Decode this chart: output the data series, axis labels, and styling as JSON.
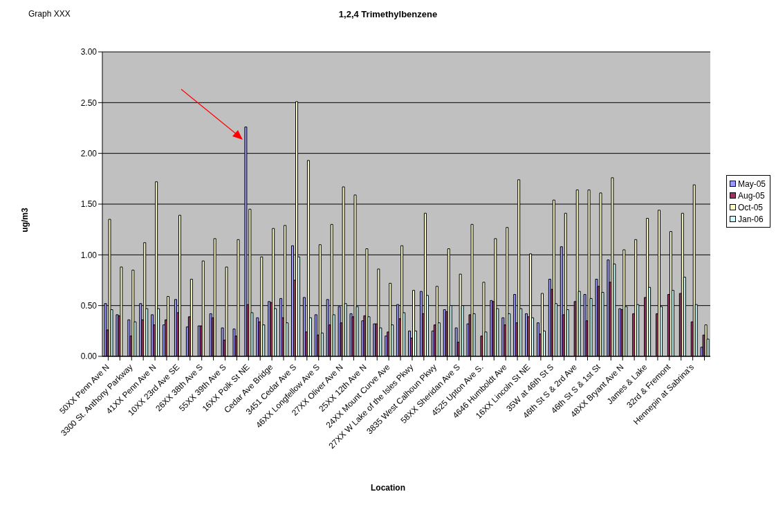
{
  "chart_data": {
    "type": "bar",
    "title": "1,2,4 Trimethylbenzene",
    "xlabel": "Location",
    "ylabel": "ug/m3",
    "annotations": [
      "Graph XXX"
    ],
    "categories": [
      "50XX Penn Ave N",
      null,
      "3300 St. Anthony Parkway",
      null,
      "41XX Penn Ave N",
      null,
      "10XX 23rd Ave SE",
      null,
      "26XX 38th Ave S",
      null,
      "55XX 39th Ave S",
      null,
      "16XX Polk St NE",
      null,
      "Cedar Ave Bridge",
      null,
      "3451 Cedar Ave S",
      null,
      "46XX Longfellow Ave S",
      null,
      "27XX Oliver Ave N",
      null,
      "25XX 12th Ave N",
      null,
      "24XX Mount Curve Ave",
      null,
      "27XX W Lake of the Isles Pkwy",
      null,
      "3835 West Calhoun Pkwy",
      null,
      "58XX Sheridan Ave S",
      null,
      "4525 Upton Ave S.",
      null,
      "4646 Humboldt Ave",
      null,
      "16XX Lincoln St NE",
      null,
      "35W at 46th St S",
      null,
      "46th St S & 2rd Ave",
      null,
      "46th St S & 1st St",
      null,
      "48XX Bryant Ave N",
      null,
      "James & Lake",
      null,
      "32rd & Fremont",
      null,
      "Hennepin at Sabrina's",
      null
    ],
    "series": [
      {
        "name": "May-05",
        "color": "#9999ff",
        "values": [
          0.52,
          0.41,
          0.36,
          0.52,
          0.41,
          0.31,
          0.56,
          0.29,
          0.3,
          0.42,
          0.28,
          0.27,
          2.26,
          0.38,
          0.54,
          0.57,
          1.09,
          0.58,
          0.41,
          0.56,
          0.49,
          0.42,
          0.35,
          0.32,
          0.2,
          0.51,
          0.25,
          0.64,
          0.25,
          0.46,
          0.28,
          0.32,
          null,
          0.55,
          0.38,
          0.61,
          0.42,
          0.33,
          0.76,
          1.08,
          null,
          0.61,
          0.76,
          0.95,
          0.47,
          null,
          null,
          null,
          null,
          null,
          null,
          0.09
        ]
      },
      {
        "name": "Aug-05",
        "color": "#993366",
        "values": [
          0.26,
          0.4,
          0.2,
          0.36,
          0.31,
          0.36,
          0.43,
          0.39,
          0.3,
          0.38,
          0.16,
          0.2,
          0.51,
          0.34,
          0.53,
          0.38,
          0.75,
          0.24,
          0.21,
          0.31,
          0.33,
          0.39,
          0.4,
          0.32,
          0.24,
          0.37,
          0.18,
          0.42,
          0.31,
          0.44,
          0.14,
          0.41,
          0.2,
          0.54,
          0.31,
          0.33,
          0.39,
          0.22,
          0.66,
          0.41,
          0.54,
          0.35,
          0.69,
          0.73,
          0.46,
          0.42,
          0.58,
          0.42,
          0.61,
          0.62,
          0.34,
          0.21
        ]
      },
      {
        "name": "Oct-05",
        "color": "#ffffcc",
        "values": [
          1.35,
          0.88,
          0.85,
          1.12,
          1.72,
          0.59,
          1.39,
          0.76,
          0.94,
          1.16,
          0.88,
          1.15,
          1.45,
          0.98,
          1.26,
          1.29,
          2.51,
          1.93,
          1.1,
          1.3,
          1.67,
          1.59,
          1.06,
          0.86,
          0.72,
          1.09,
          0.65,
          1.41,
          0.69,
          1.06,
          0.81,
          1.3,
          0.73,
          1.16,
          1.27,
          1.74,
          1.01,
          0.62,
          1.54,
          1.41,
          1.64,
          1.64,
          1.61,
          1.76,
          1.05,
          1.15,
          1.36,
          1.44,
          1.23,
          1.41,
          1.69,
          0.31
        ]
      },
      {
        "name": "Jan-06",
        "color": "#ccffff",
        "values": [
          0.46,
          null,
          0.34,
          0.47,
          0.47,
          null,
          null,
          null,
          null,
          null,
          null,
          null,
          0.43,
          0.31,
          0.47,
          0.33,
          0.98,
          0.38,
          0.23,
          0.41,
          0.52,
          0.49,
          0.39,
          0.28,
          0.31,
          0.43,
          0.25,
          0.6,
          0.33,
          0.5,
          0.5,
          0.42,
          0.24,
          0.47,
          0.42,
          0.47,
          0.38,
          0.25,
          0.52,
          0.46,
          0.64,
          0.57,
          0.63,
          0.91,
          0.49,
          0.51,
          0.68,
          0.49,
          0.65,
          0.78,
          0.51,
          0.17
        ]
      }
    ],
    "ylim": [
      0,
      3
    ],
    "yticks": [
      {
        "value": 0,
        "label": "0.00"
      },
      {
        "value": 0.5,
        "label": "0.50"
      },
      {
        "value": 1,
        "label": "1.00"
      },
      {
        "value": 1.5,
        "label": "1.50"
      },
      {
        "value": 2,
        "label": "2.00"
      },
      {
        "value": 2.5,
        "label": "2.50"
      },
      {
        "value": 3,
        "label": "3.00"
      }
    ],
    "grid": "y",
    "legend": "right"
  }
}
